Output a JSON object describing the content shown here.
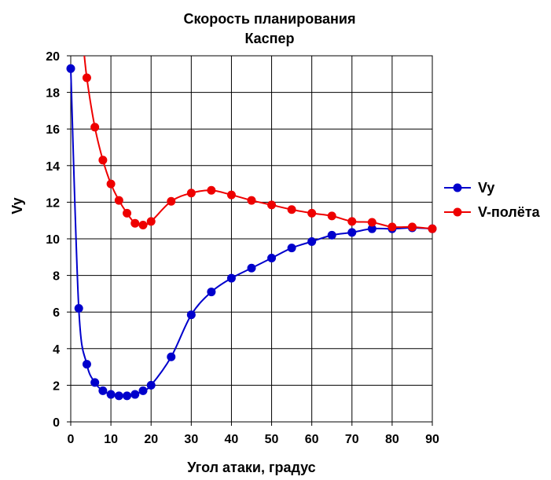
{
  "chart_data": {
    "type": "line",
    "title": "Скорость планирования",
    "subtitle": "Каспер",
    "xlabel": "Угол атаки, градус",
    "ylabel": "Vy",
    "xlim": [
      0,
      90
    ],
    "ylim": [
      0,
      20
    ],
    "x_ticks": [
      "0",
      "10",
      "20",
      "30",
      "40",
      "50",
      "60",
      "70",
      "80",
      "90"
    ],
    "y_ticks": [
      "0",
      "2",
      "4",
      "6",
      "8",
      "10",
      "12",
      "14",
      "16",
      "18",
      "20"
    ],
    "grid": true,
    "legend_position": "right",
    "series": [
      {
        "name": "Vy",
        "color": "#0000cc",
        "points": [
          [
            0,
            19.3
          ],
          [
            2,
            6.2
          ],
          [
            4,
            3.15
          ],
          [
            6,
            2.15
          ],
          [
            8,
            1.7
          ],
          [
            10,
            1.5
          ],
          [
            12,
            1.42
          ],
          [
            14,
            1.42
          ],
          [
            16,
            1.5
          ],
          [
            18,
            1.7
          ],
          [
            20,
            2.0
          ],
          [
            25,
            3.55
          ],
          [
            30,
            5.85
          ],
          [
            35,
            7.1
          ],
          [
            40,
            7.85
          ],
          [
            45,
            8.4
          ],
          [
            50,
            8.95
          ],
          [
            55,
            9.5
          ],
          [
            60,
            9.85
          ],
          [
            65,
            10.2
          ],
          [
            70,
            10.35
          ],
          [
            75,
            10.55
          ],
          [
            80,
            10.55
          ],
          [
            85,
            10.6
          ],
          [
            90,
            10.55
          ]
        ]
      },
      {
        "name": "V-полёта",
        "color": "#ee0000",
        "points": [
          [
            4,
            18.8
          ],
          [
            6,
            16.1
          ],
          [
            8,
            14.3
          ],
          [
            10,
            13.0
          ],
          [
            12,
            12.1
          ],
          [
            14,
            11.4
          ],
          [
            16,
            10.85
          ],
          [
            18,
            10.75
          ],
          [
            20,
            10.95
          ],
          [
            25,
            12.05
          ],
          [
            30,
            12.5
          ],
          [
            35,
            12.65
          ],
          [
            40,
            12.4
          ],
          [
            45,
            12.1
          ],
          [
            50,
            11.85
          ],
          [
            55,
            11.6
          ],
          [
            60,
            11.4
          ],
          [
            65,
            11.25
          ],
          [
            70,
            10.95
          ],
          [
            75,
            10.9
          ],
          [
            80,
            10.65
          ],
          [
            85,
            10.65
          ],
          [
            90,
            10.55
          ]
        ]
      }
    ]
  }
}
